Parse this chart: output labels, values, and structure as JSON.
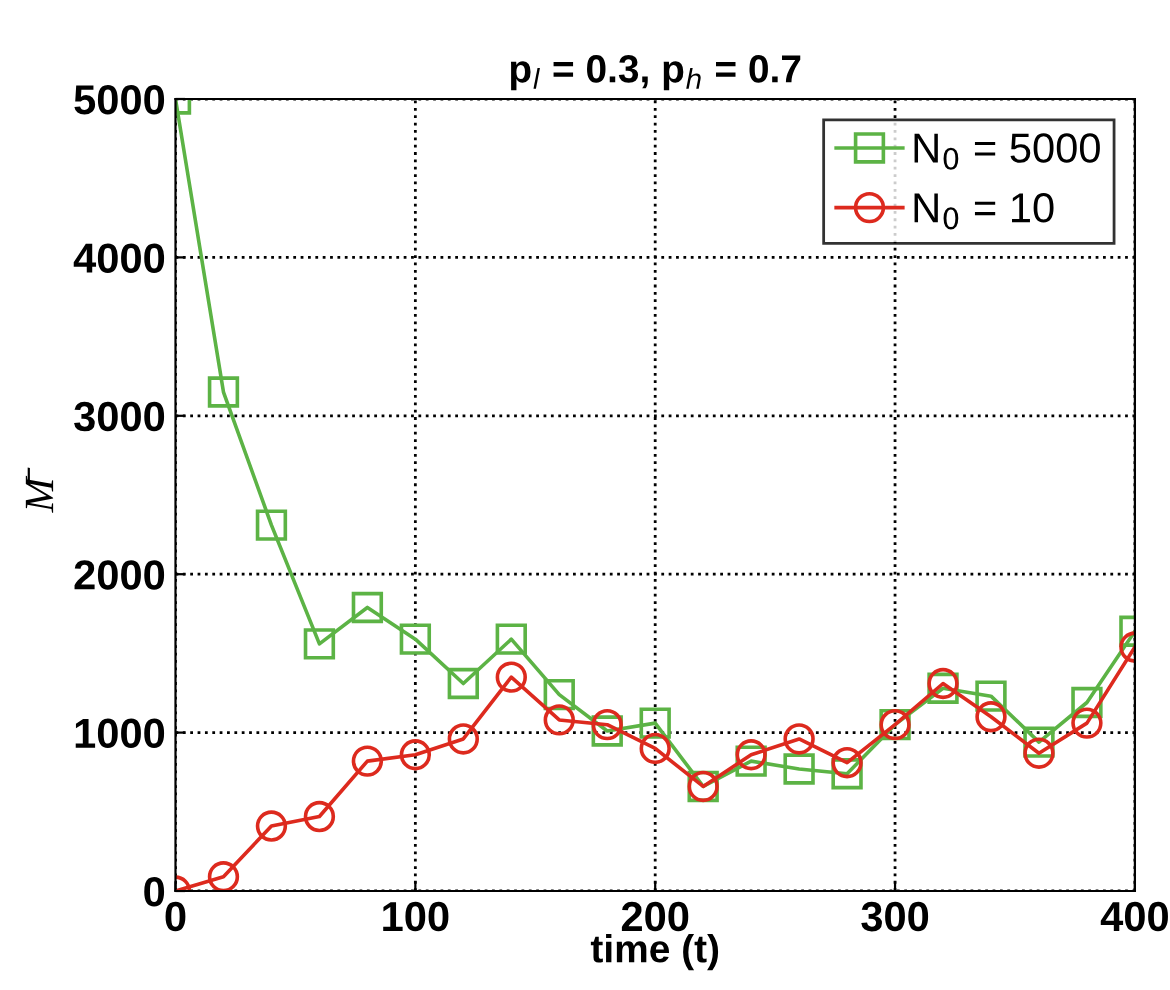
{
  "chart_data": {
    "type": "line",
    "title": "p$_{l}$ = 0.3, p$_{h}$ = 0.7",
    "xlabel": "time (t)",
    "ylabel": "M̄",
    "x": [
      0,
      20,
      40,
      60,
      80,
      100,
      120,
      140,
      160,
      180,
      200,
      220,
      240,
      260,
      280,
      300,
      320,
      340,
      360,
      380,
      400
    ],
    "series": [
      {
        "name": "N$_{0}$ = 5000",
        "color": "#5cb345",
        "marker": "square",
        "values": [
          5000,
          3150,
          2310,
          1560,
          1790,
          1590,
          1310,
          1590,
          1240,
          1010,
          1060,
          660,
          820,
          770,
          740,
          1050,
          1280,
          1230,
          940,
          1190,
          1640
        ]
      },
      {
        "name": "N$_{0}$ = 10",
        "color": "#dd2a1e",
        "marker": "circle",
        "values": [
          0,
          90,
          410,
          470,
          820,
          860,
          960,
          1350,
          1080,
          1050,
          900,
          660,
          860,
          960,
          810,
          1050,
          1310,
          1100,
          870,
          1060,
          1540
        ]
      }
    ],
    "xlim": [
      0,
      400
    ],
    "xticks": [
      0,
      100,
      200,
      300,
      400
    ],
    "ylim": [
      0,
      5000
    ],
    "yticks": [
      0,
      1000,
      2000,
      3000,
      4000,
      5000
    ],
    "grid": true,
    "legend": "top right",
    "line_style": "solid"
  }
}
